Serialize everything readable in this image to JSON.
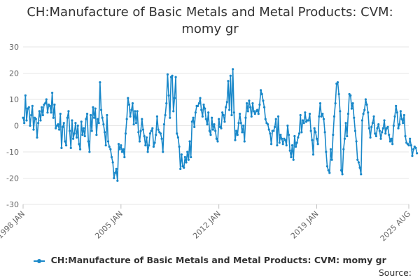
{
  "title_line1": "CH:Manufacture of Basic Metals and Metal Products: CVM:",
  "title_line2": "momy gr",
  "legend_label": "CH:Manufacture of Basic Metals and Metal Products: CVM: momy gr",
  "source_label": "Source:",
  "colors": {
    "series": "#1a88c9",
    "grid": "#e6e6e6",
    "axis_text": "#666666"
  },
  "chart_data": {
    "type": "line",
    "title": "CH:Manufacture of Basic Metals and Metal Products: CVM: momy gr",
    "xlabel": "",
    "ylabel": "",
    "ylim": [
      -30,
      30
    ],
    "yticks": [
      30,
      20,
      10,
      0,
      -10,
      -20,
      -30
    ],
    "xlim": [
      "1998-01",
      "2025-08"
    ],
    "xticks": [
      "1998 JAN",
      "2005 JAN",
      "2012 JAN",
      "2019 JAN",
      "2025 AUG"
    ],
    "grid": true,
    "legend_position": "bottom",
    "series": [
      {
        "name": "CH:Manufacture of Basic Metals and Metal Products: CVM: momy gr",
        "x_start": "1998-01",
        "frequency": "monthly",
        "values": [
          3,
          1,
          11.5,
          2,
          6.5,
          7,
          0,
          4,
          7.5,
          -1.5,
          3,
          2.5,
          -4.5,
          1,
          5.5,
          2,
          7,
          4,
          8,
          8.5,
          10,
          5,
          8,
          7.5,
          5,
          12.5,
          3,
          8,
          -1,
          0,
          0.5,
          -1.5,
          4.5,
          -8.5,
          -0.5,
          1,
          -6,
          -7.5,
          3,
          5.5,
          -2,
          -8.5,
          2,
          -5,
          -3,
          1,
          -4.5,
          0,
          -7,
          -9,
          1.5,
          -3.5,
          -1,
          -4,
          2.5,
          4.5,
          -6,
          -10,
          4,
          -2,
          7,
          3,
          6.5,
          -3.5,
          2.5,
          1,
          16.5,
          6,
          3,
          0.5,
          -2.5,
          -7.5,
          4,
          -6,
          -8,
          -9,
          -12,
          -14,
          -20,
          -18,
          -16.5,
          -21,
          -7,
          -9,
          -7.5,
          -10,
          -9,
          -12,
          -3,
          2.5,
          10.5,
          8,
          3.5,
          6,
          8.5,
          0.5,
          5.5,
          1,
          5.5,
          -2.5,
          -6,
          -2,
          2.5,
          -1.5,
          -4,
          -7.5,
          -4.5,
          -10,
          -7.5,
          -3,
          -2,
          -1,
          -8,
          -6.5,
          -3.5,
          3.5,
          -1.5,
          -2.5,
          -3,
          -5,
          -10,
          0.5,
          4,
          8.5,
          19.5,
          11.5,
          3,
          18.5,
          19,
          5.5,
          10.5,
          18.5,
          -3,
          -4.5,
          -8,
          -16.5,
          -11,
          -15.5,
          -16,
          -12,
          -14,
          -10,
          -13,
          -6,
          -12,
          1.5,
          3,
          -0.5,
          5,
          7.5,
          7.5,
          8.5,
          10.5,
          6,
          3.5,
          8,
          6.5,
          2.5,
          0.5,
          5,
          -2,
          -3.5,
          3,
          -1.5,
          0.5,
          -2,
          -5,
          -6,
          2.5,
          -0.5,
          -1,
          5,
          4,
          1.5,
          7,
          9,
          17,
          6,
          19,
          4,
          21.5,
          5,
          -5.5,
          -2,
          -3.5,
          1,
          4.5,
          1,
          -2.5,
          0,
          -6,
          3,
          8.5,
          5.5,
          9.5,
          7,
          3.5,
          8.5,
          5.5,
          4.5,
          5.5,
          6,
          4.5,
          8,
          13.5,
          12,
          9.5,
          7,
          2.5,
          1,
          0.5,
          -1.5,
          -3,
          -7,
          -2,
          -2,
          -0.5,
          2.5,
          -7.5,
          3.5,
          -6.5,
          -3.5,
          -5,
          -7,
          -5,
          -5.5,
          -7.5,
          0,
          -3.5,
          -9.5,
          -12,
          -7.5,
          -13,
          -4,
          -8,
          -6.5,
          -4.5,
          -3,
          4,
          -2.5,
          2,
          1,
          5,
          1.5,
          2,
          2,
          4.5,
          -2,
          -5.5,
          -11,
          -1,
          -2.5,
          -5,
          -7,
          3.5,
          8.5,
          3.5,
          4.5,
          2.5,
          -2.5,
          -10,
          -15.5,
          -17,
          -18,
          -9,
          -13,
          -3.5,
          3.5,
          8.5,
          16,
          16.5,
          12,
          5.5,
          -17,
          -18.5,
          -9,
          -5,
          1,
          -4,
          4.5,
          12,
          11.5,
          6.5,
          8.5,
          3,
          -2,
          -6,
          -13,
          -14,
          -16,
          -18.5,
          2,
          4.5,
          6,
          10,
          8,
          5,
          -1,
          -4.5,
          -0.5,
          1,
          3.5,
          -3,
          -4,
          -1,
          0.5,
          -2,
          -5,
          -2.5,
          -1,
          2,
          -3,
          -1,
          -0.5,
          -3.5,
          -6,
          -5,
          -7,
          0,
          3.5,
          7.5,
          5,
          -1,
          0.5,
          5.5,
          2.5,
          1,
          4,
          -4,
          -6.5,
          -7,
          -7.5,
          -5,
          -7.5,
          -11.5,
          -9,
          -8,
          -8.5,
          -10.5
        ]
      }
    ]
  }
}
